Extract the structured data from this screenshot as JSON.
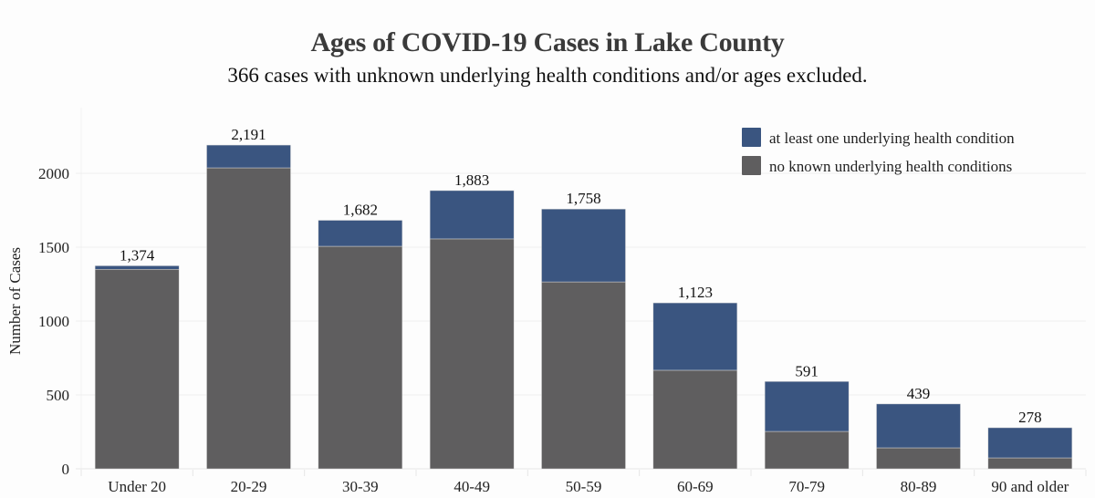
{
  "header": {
    "title": "Ages of COVID-19 Cases in Lake County",
    "subtitle": "366 cases with unknown underlying health conditions and/or ages excluded."
  },
  "colors": {
    "underlying": "#3a5580",
    "no_known": "#5f5e5f",
    "grid": "#eeeeee"
  },
  "chart_data": {
    "type": "bar",
    "stacked": true,
    "title": "Ages of COVID-19 Cases in Lake County",
    "subtitle": "366 cases with unknown underlying health conditions and/or ages excluded.",
    "xlabel": "",
    "ylabel": "Number of Cases",
    "ylim": [
      0,
      2350
    ],
    "yticks": [
      0,
      500,
      1000,
      1500,
      2000
    ],
    "grid": true,
    "legend_position": "top-right",
    "categories": [
      "Under 20",
      "20-29",
      "30-39",
      "40-49",
      "50-59",
      "60-69",
      "70-79",
      "80-89",
      "90 and older"
    ],
    "series": [
      {
        "name": "no known underlying health conditions",
        "color": "#5f5e5f",
        "values": [
          1350,
          2037,
          1506,
          1556,
          1265,
          667,
          253,
          142,
          74
        ]
      },
      {
        "name": "at least one underlying health condition",
        "color": "#3a5580",
        "values": [
          24,
          154,
          176,
          327,
          493,
          456,
          338,
          297,
          204
        ]
      }
    ],
    "totals": [
      1374,
      2191,
      1682,
      1883,
      1758,
      1123,
      591,
      439,
      278
    ],
    "total_labels": [
      "1,374",
      "2,191",
      "1,682",
      "1,883",
      "1,758",
      "1,123",
      "591",
      "439",
      "278"
    ],
    "legend": [
      {
        "label": "at least one underlying health condition",
        "color": "#3a5580"
      },
      {
        "label": "no known underlying health conditions",
        "color": "#5f5e5f"
      }
    ]
  }
}
